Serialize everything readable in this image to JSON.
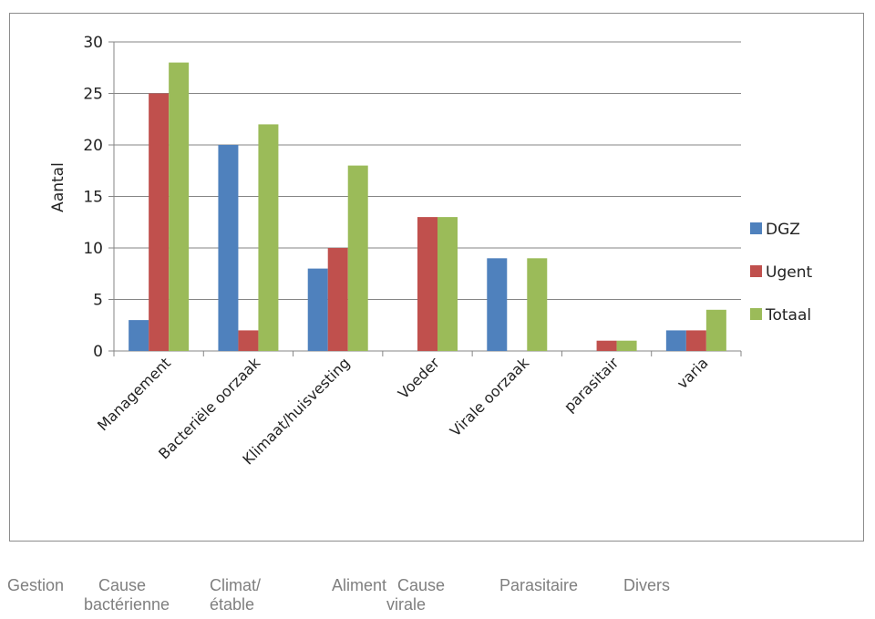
{
  "chart_data": {
    "type": "bar",
    "title": "",
    "xlabel": "",
    "ylabel": "Aantal",
    "ylim": [
      0,
      30
    ],
    "yticks": [
      0,
      5,
      10,
      15,
      20,
      25,
      30
    ],
    "grid": true,
    "legend_position": "right",
    "categories": [
      "Management",
      "Bacteriële oorzaak",
      "Klimaat/huisvesting",
      "Voeder",
      "Virale oorzaak",
      "parasitair",
      "varia"
    ],
    "series": [
      {
        "name": "DGZ",
        "color": "#4f81bd",
        "values": [
          3,
          20,
          8,
          0,
          9,
          0,
          2
        ]
      },
      {
        "name": "Ugent",
        "color": "#c0504d",
        "values": [
          25,
          2,
          10,
          13,
          0,
          1,
          2
        ]
      },
      {
        "name": "Totaal",
        "color": "#9bbb59",
        "values": [
          28,
          22,
          18,
          13,
          9,
          1,
          4
        ]
      }
    ]
  },
  "translations": [
    "Gestion",
    "Cause\nbactérienne",
    "Climat/\nétable",
    "Aliment",
    "Cause\nvirale",
    "Parasitaire",
    "Divers"
  ]
}
